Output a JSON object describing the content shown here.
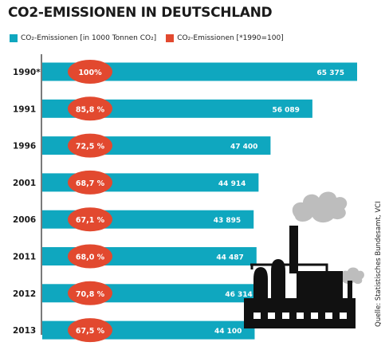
{
  "title": "CO2-EMISSIONEN IN DEUTSCHLAND",
  "source": "Quelle: Statistisches Bundesamt, VCI",
  "colors": {
    "bar": "#0fa7bf",
    "percent_badge": "#e2492f",
    "label_text": "#ffffff",
    "axis": "#222222",
    "factory": "#111111",
    "smoke": "#bdbdbd"
  },
  "icons": [
    "factory-icon",
    "smoke-icon"
  ],
  "chart_data": {
    "type": "bar",
    "orientation": "horizontal",
    "categories": [
      "1990*",
      "1991",
      "1996",
      "2001",
      "2006",
      "2011",
      "2012",
      "2013"
    ],
    "series": [
      {
        "name": "CO₂-Emissionen [in 1000 Tonnen CO₂]",
        "values": [
          65375,
          56089,
          47400,
          44914,
          43895,
          44487,
          46314,
          44100
        ],
        "labels": [
          "65 375",
          "56 089",
          "47 400",
          "44 914",
          "43 895",
          "44 487",
          "46 314",
          "44 100"
        ]
      },
      {
        "name": "CO₂-Emissionen [*1990=100]",
        "values": [
          100,
          85.8,
          72.5,
          68.7,
          67.1,
          68.0,
          70.8,
          67.5
        ],
        "labels": [
          "100%",
          "85,8 %",
          "72,5 %",
          "68,7 %",
          "67,1 %",
          "68,0 %",
          "70,8 %",
          "67,5 %"
        ]
      }
    ],
    "xlim": [
      0,
      65375
    ],
    "grid": false,
    "legend": "top-left"
  }
}
